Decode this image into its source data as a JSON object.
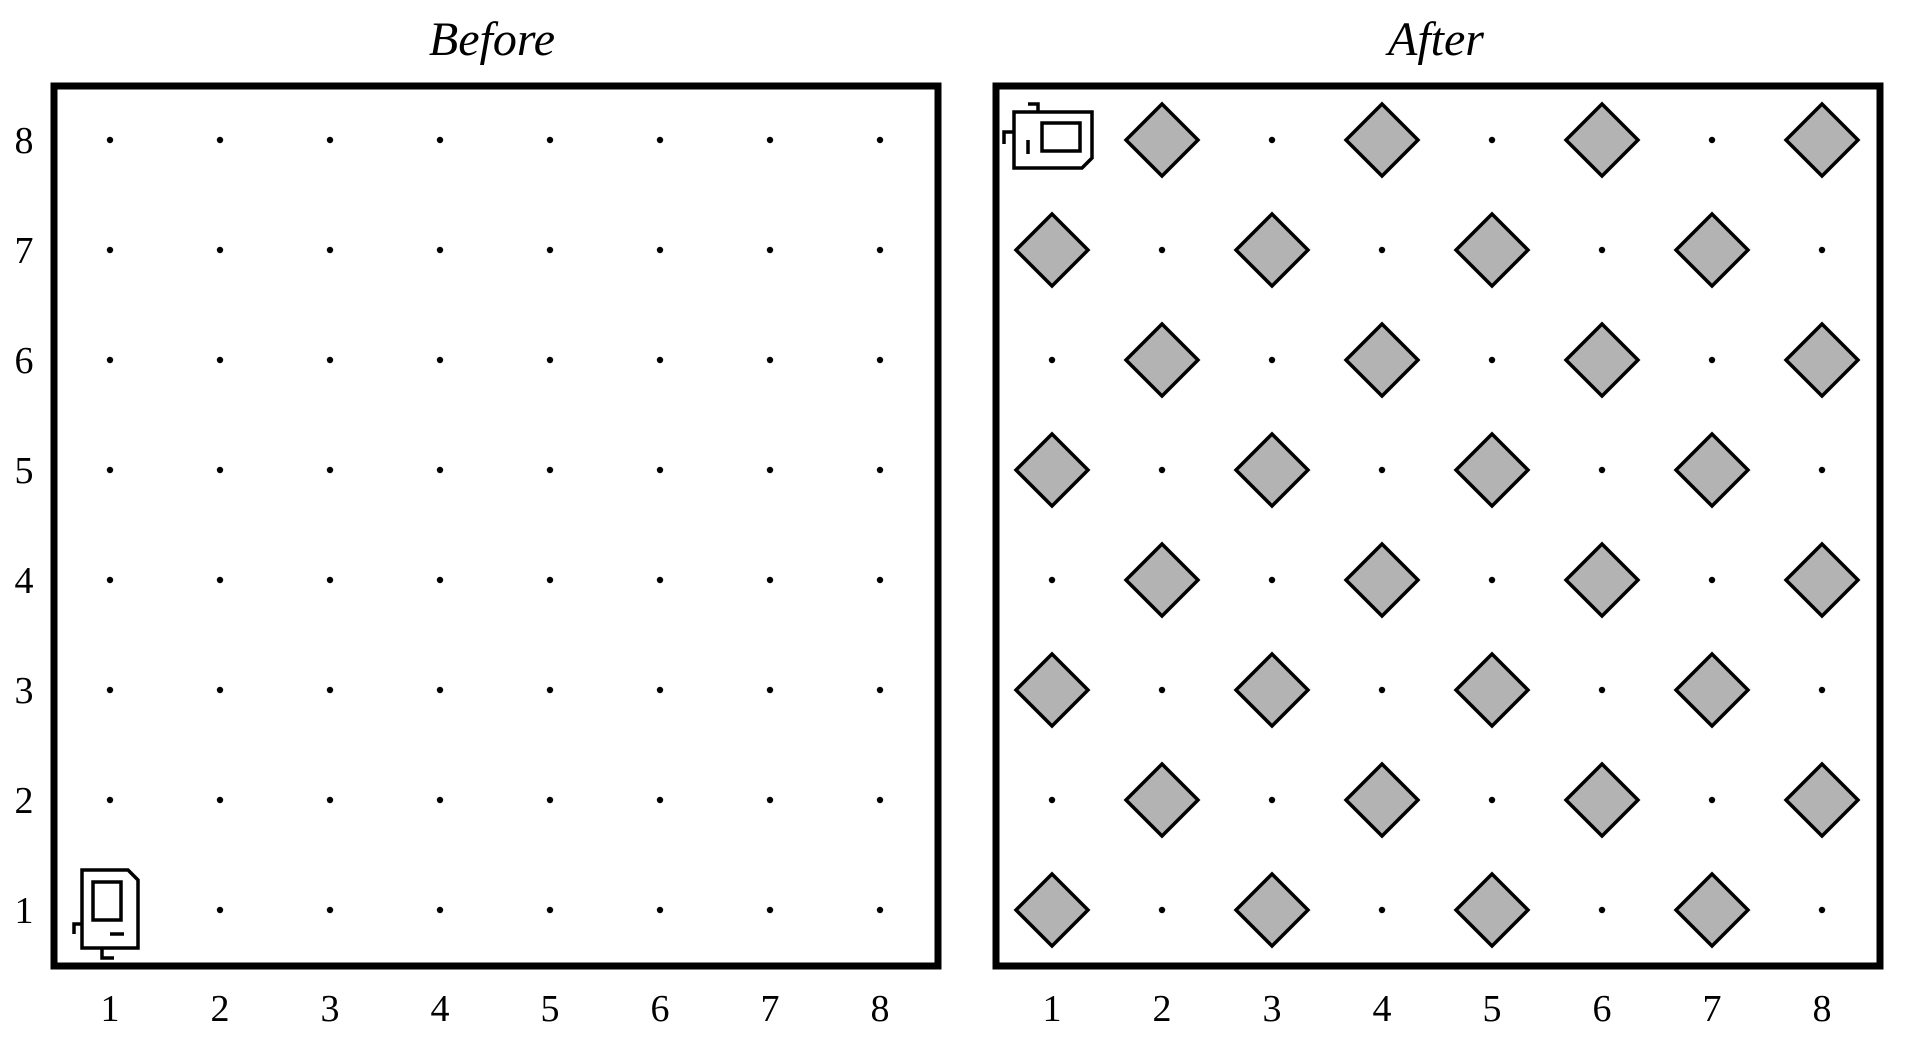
{
  "colors": {
    "background": "#ffffff",
    "ink": "#000000",
    "beeper_fill": "#b3b3b3"
  },
  "grid": {
    "columns": 8,
    "rows": 8
  },
  "worlds": [
    {
      "title": "Before",
      "column_labels": [
        "1",
        "2",
        "3",
        "4",
        "5",
        "6",
        "7",
        "8"
      ],
      "row_labels": [
        "1",
        "2",
        "3",
        "4",
        "5",
        "6",
        "7",
        "8"
      ],
      "robot": {
        "column": 1,
        "row": 1,
        "facing": "north",
        "icon": "robot-icon"
      },
      "beepers": []
    },
    {
      "title": "After",
      "column_labels": [
        "1",
        "2",
        "3",
        "4",
        "5",
        "6",
        "7",
        "8"
      ],
      "row_labels": [],
      "robot": {
        "column": 1,
        "row": 8,
        "facing": "east",
        "icon": "robot-icon"
      },
      "beepers": [
        [
          1,
          1
        ],
        [
          3,
          1
        ],
        [
          5,
          1
        ],
        [
          7,
          1
        ],
        [
          2,
          2
        ],
        [
          4,
          2
        ],
        [
          6,
          2
        ],
        [
          8,
          2
        ],
        [
          1,
          3
        ],
        [
          3,
          3
        ],
        [
          5,
          3
        ],
        [
          7,
          3
        ],
        [
          2,
          4
        ],
        [
          4,
          4
        ],
        [
          6,
          4
        ],
        [
          8,
          4
        ],
        [
          1,
          5
        ],
        [
          3,
          5
        ],
        [
          5,
          5
        ],
        [
          7,
          5
        ],
        [
          2,
          6
        ],
        [
          4,
          6
        ],
        [
          6,
          6
        ],
        [
          8,
          6
        ],
        [
          1,
          7
        ],
        [
          3,
          7
        ],
        [
          5,
          7
        ],
        [
          7,
          7
        ],
        [
          2,
          8
        ],
        [
          4,
          8
        ],
        [
          6,
          8
        ],
        [
          8,
          8
        ]
      ]
    }
  ]
}
